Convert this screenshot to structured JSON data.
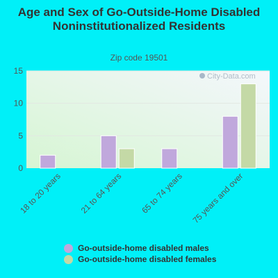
{
  "chart_data": {
    "type": "bar",
    "title": "Age and Sex of Go-Outside-Home Disabled Noninstitutionalized Residents",
    "subtitle": "Zip code 19501",
    "watermark": "City-Data.com",
    "categories": [
      "18 to 20 years",
      "21 to 64 years",
      "65 to 74 years",
      "75 years and over"
    ],
    "series": [
      {
        "name": "Go-outside-home disabled males",
        "color": "#c0a8dc",
        "values": [
          2,
          5,
          3,
          8
        ]
      },
      {
        "name": "Go-outside-home disabled females",
        "color": "#c4d9a6",
        "values": [
          0,
          3,
          0,
          13
        ]
      }
    ],
    "yticks": [
      0,
      5,
      10,
      15
    ],
    "ylim": [
      0,
      15
    ],
    "xlabel": "",
    "ylabel": "",
    "grid": true,
    "legend_position": "bottom"
  }
}
